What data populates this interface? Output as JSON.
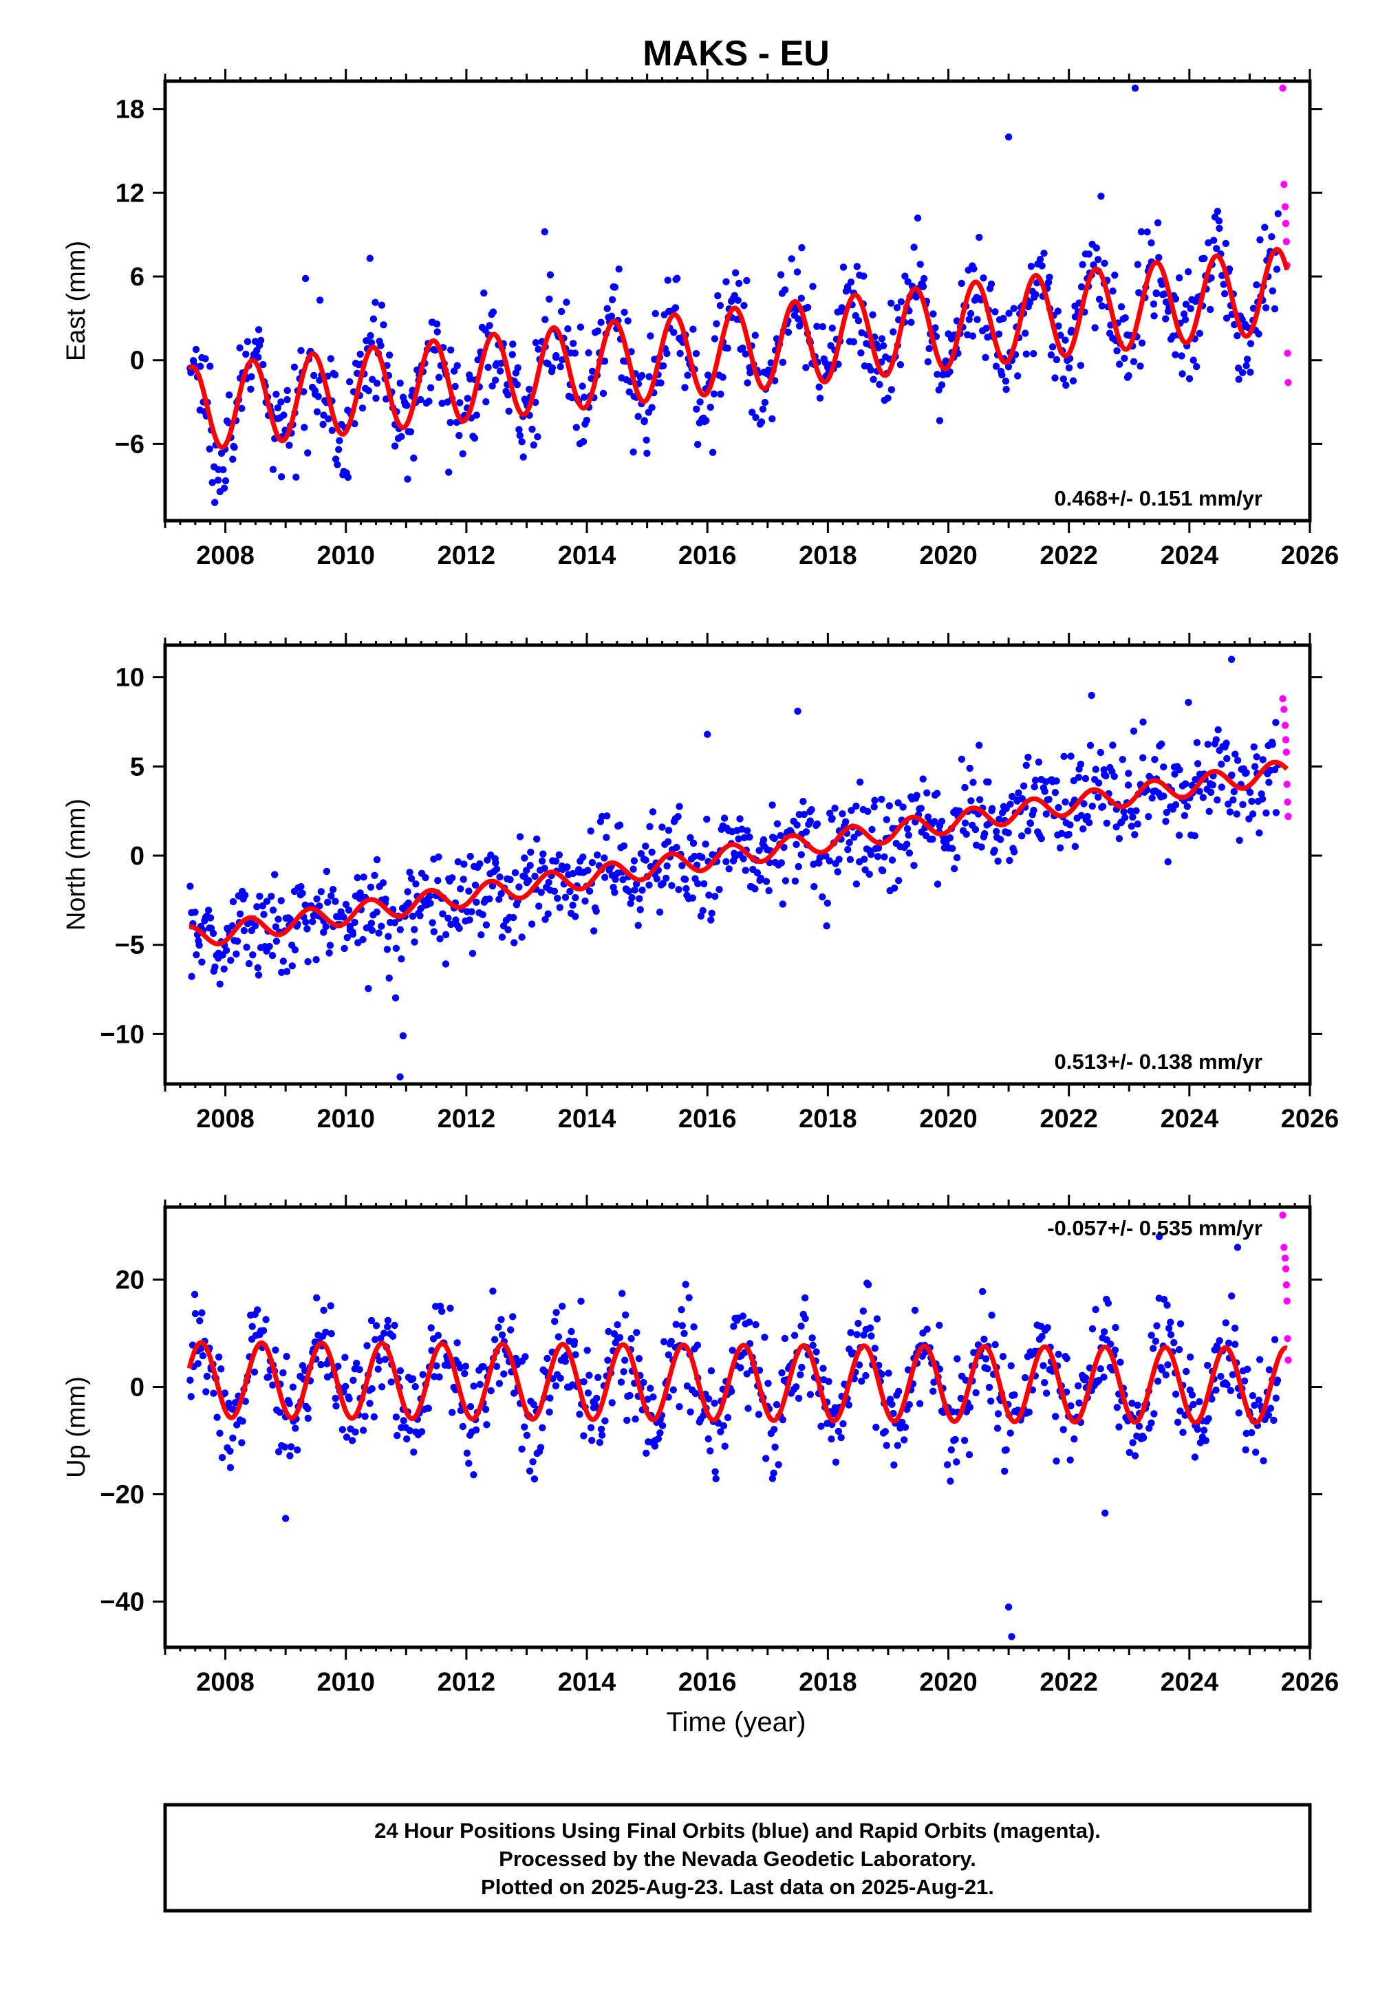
{
  "title": "MAKS - EU",
  "xlabel": "Time (year)",
  "colors": {
    "final": "#0000ff",
    "rapid": "#ff00ff",
    "model": "#ff0000"
  },
  "footer": [
    "24 Hour Positions Using Final Orbits (blue) and Rapid Orbits (magenta).",
    "Processed by the Nevada Geodetic Laboratory.",
    "Plotted on 2025-Aug-23. Last data on 2025-Aug-21."
  ],
  "chart_data": [
    {
      "type": "scatter",
      "ylabel": "East (mm)",
      "rate_label": "0.468+/- 0.151 mm/yr",
      "xlim": [
        2007.0,
        2026.0
      ],
      "ylim": [
        -11.5,
        20.0
      ],
      "x_ticks": [
        2008,
        2010,
        2012,
        2014,
        2016,
        2018,
        2020,
        2022,
        2024,
        2026
      ],
      "y_ticks": [
        -6,
        0,
        6,
        12,
        18
      ],
      "model": {
        "start_year": 2007.4,
        "end_year": 2025.62,
        "offset": -3.5,
        "rate": 0.468,
        "amplitude": 3.0,
        "peak_year_fraction": 0.45
      },
      "points": {
        "count": 900,
        "noise_sd": 1.9,
        "start_year": 2007.4,
        "end_year": 2025.48
      },
      "rapid": {
        "x": [
          2025.55,
          2025.57,
          2025.59,
          2025.6,
          2025.61,
          2025.62,
          2025.63,
          2025.64
        ],
        "y": [
          19.5,
          12.6,
          11.0,
          9.8,
          8.5,
          6.8,
          0.5,
          -1.6
        ]
      },
      "outliers": {
        "x": [
          2023.1,
          2021.0,
          2010.4,
          2013.3
        ],
        "y": [
          19.5,
          16.0,
          7.3,
          9.2
        ]
      }
    },
    {
      "type": "scatter",
      "ylabel": "North (mm)",
      "rate_label": "0.513+/- 0.138 mm/yr",
      "xlim": [
        2007.0,
        2026.0
      ],
      "ylim": [
        -12.8,
        11.8
      ],
      "x_ticks": [
        2008,
        2010,
        2012,
        2014,
        2016,
        2018,
        2020,
        2022,
        2024,
        2026
      ],
      "y_ticks": [
        -10,
        -5,
        0,
        5,
        10
      ],
      "model": {
        "start_year": 2007.4,
        "end_year": 2025.62,
        "offset": -4.6,
        "rate": 0.513,
        "amplitude": 0.6,
        "peak_year_fraction": 0.4
      },
      "points": {
        "count": 900,
        "noise_sd": 1.4,
        "start_year": 2007.4,
        "end_year": 2025.48
      },
      "rapid": {
        "x": [
          2025.55,
          2025.57,
          2025.59,
          2025.6,
          2025.61,
          2025.62,
          2025.63,
          2025.64
        ],
        "y": [
          8.8,
          8.2,
          7.3,
          6.5,
          5.8,
          4.0,
          3.0,
          2.2
        ]
      },
      "outliers": {
        "x": [
          2024.7,
          2010.9,
          2010.95,
          2017.5,
          2016.0
        ],
        "y": [
          11.0,
          -12.4,
          -10.1,
          8.1,
          6.8
        ]
      }
    },
    {
      "type": "scatter",
      "ylabel": "Up (mm)",
      "rate_label": "-0.057+/- 0.535 mm/yr",
      "xlim": [
        2007.0,
        2026.0
      ],
      "ylim": [
        -48.5,
        33.5
      ],
      "x_ticks": [
        2008,
        2010,
        2012,
        2014,
        2016,
        2018,
        2020,
        2022,
        2024,
        2026
      ],
      "y_ticks": [
        -40,
        -20,
        0,
        20
      ],
      "model": {
        "start_year": 2007.4,
        "end_year": 2025.62,
        "offset": 1.3,
        "rate": -0.057,
        "amplitude": 7.0,
        "peak_year_fraction": 0.6
      },
      "points": {
        "count": 900,
        "noise_sd": 5.0,
        "start_year": 2007.4,
        "end_year": 2025.48
      },
      "rapid": {
        "x": [
          2025.55,
          2025.57,
          2025.59,
          2025.6,
          2025.61,
          2025.62,
          2025.63,
          2025.64
        ],
        "y": [
          32.0,
          26.0,
          24.0,
          22.0,
          19.0,
          16.0,
          9.0,
          5.0
        ]
      },
      "outliers": {
        "x": [
          2021.0,
          2021.05,
          2023.5,
          2024.8,
          2009.0,
          2022.6
        ],
        "y": [
          -41.0,
          -46.5,
          28.0,
          26.0,
          -24.5,
          -23.5
        ]
      }
    }
  ]
}
